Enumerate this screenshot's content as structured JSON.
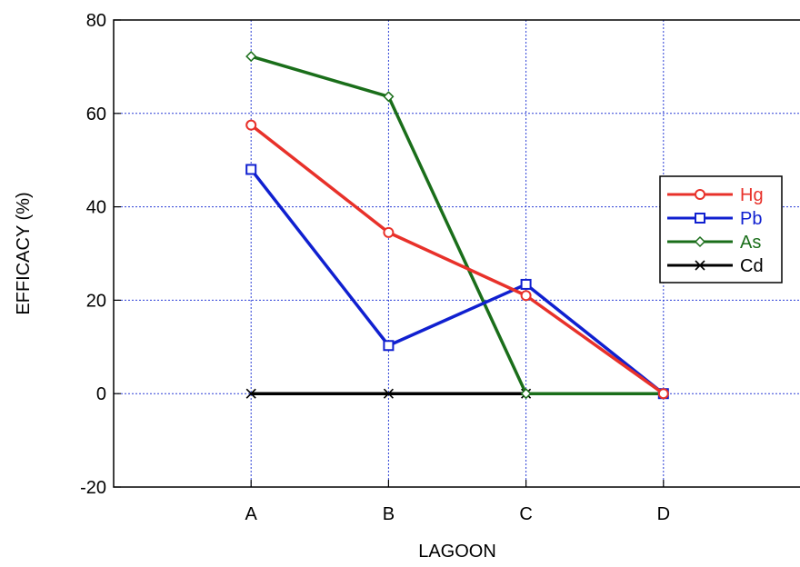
{
  "chart_data": {
    "type": "line",
    "title": "",
    "xlabel": "LAGOON",
    "ylabel": "EFFICACY (%)",
    "categories": [
      "A",
      "B",
      "C",
      "D"
    ],
    "ylim": [
      -20,
      80
    ],
    "yticks": [
      -20,
      0,
      20,
      40,
      60,
      80
    ],
    "grid": true,
    "legend_position": "right",
    "series": [
      {
        "name": "Hg",
        "values": [
          57.5,
          34.5,
          21,
          0
        ],
        "color": "#e8312a",
        "marker": "circle"
      },
      {
        "name": "Pb",
        "values": [
          48,
          10.3,
          23.4,
          0
        ],
        "color": "#1020d0",
        "marker": "square"
      },
      {
        "name": "As",
        "values": [
          72.2,
          63.6,
          0,
          0
        ],
        "color": "#1a6e1a",
        "marker": "diamond"
      },
      {
        "name": "Cd",
        "values": [
          0,
          0,
          0,
          0
        ],
        "color": "#000000",
        "marker": "x"
      }
    ]
  }
}
